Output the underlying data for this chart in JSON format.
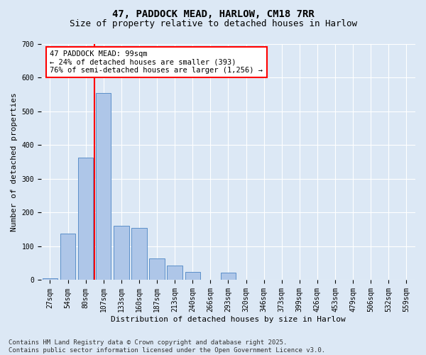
{
  "title_line1": "47, PADDOCK MEAD, HARLOW, CM18 7RR",
  "title_line2": "Size of property relative to detached houses in Harlow",
  "xlabel": "Distribution of detached houses by size in Harlow",
  "ylabel": "Number of detached properties",
  "bar_labels": [
    "27sqm",
    "54sqm",
    "80sqm",
    "107sqm",
    "133sqm",
    "160sqm",
    "187sqm",
    "213sqm",
    "240sqm",
    "266sqm",
    "293sqm",
    "320sqm",
    "346sqm",
    "373sqm",
    "399sqm",
    "426sqm",
    "453sqm",
    "479sqm",
    "506sqm",
    "532sqm",
    "559sqm"
  ],
  "bar_values": [
    5,
    137,
    363,
    553,
    160,
    155,
    65,
    42,
    25,
    0,
    22,
    0,
    0,
    0,
    0,
    0,
    0,
    0,
    0,
    0,
    0
  ],
  "bar_color": "#aec6e8",
  "bar_edge_color": "#5b8fc9",
  "vline_color": "red",
  "annotation_text": "47 PADDOCK MEAD: 99sqm\n← 24% of detached houses are smaller (393)\n76% of semi-detached houses are larger (1,256) →",
  "annotation_box_color": "white",
  "annotation_box_edge": "red",
  "ylim": [
    0,
    700
  ],
  "yticks": [
    0,
    100,
    200,
    300,
    400,
    500,
    600,
    700
  ],
  "background_color": "#dce8f5",
  "footer_line1": "Contains HM Land Registry data © Crown copyright and database right 2025.",
  "footer_line2": "Contains public sector information licensed under the Open Government Licence v3.0.",
  "title_fontsize": 10,
  "subtitle_fontsize": 9,
  "axis_label_fontsize": 8,
  "tick_fontsize": 7,
  "annotation_fontsize": 7.5,
  "footer_fontsize": 6.5
}
